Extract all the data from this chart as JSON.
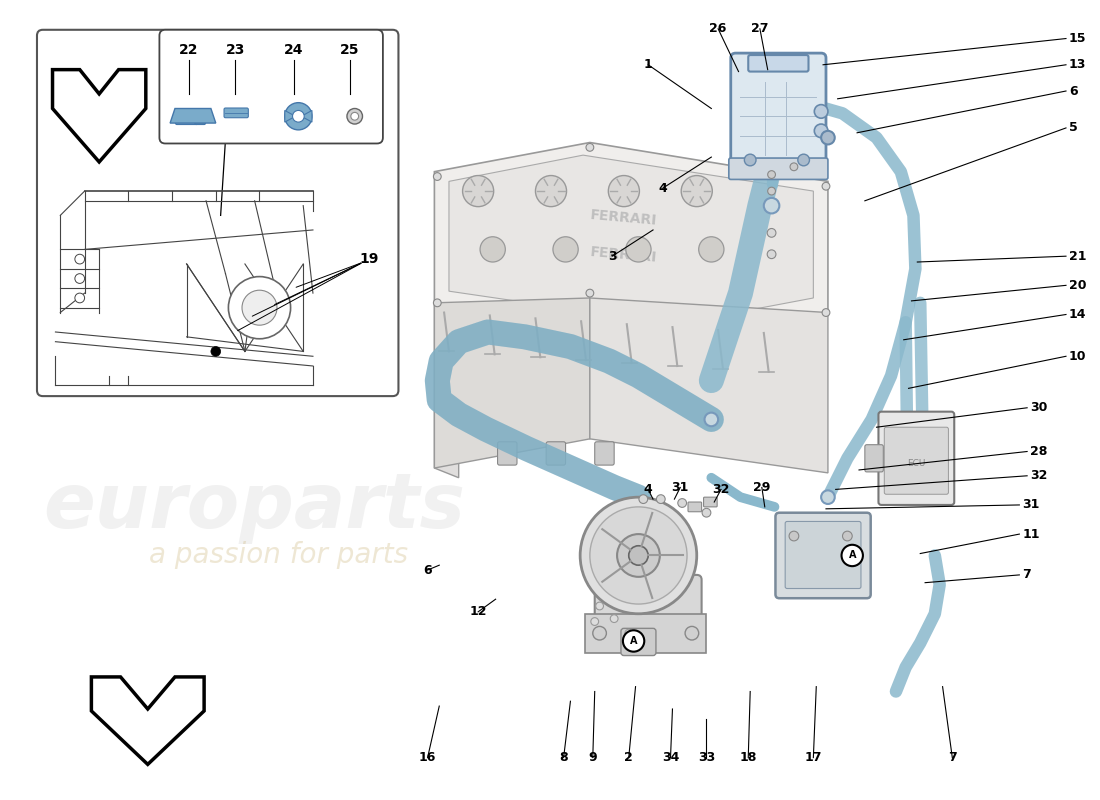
{
  "bg_color": "#ffffff",
  "hose_color": "#8ab8cc",
  "hose_dark": "#5a8fa8",
  "engine_fill": "#f2f0ee",
  "engine_stroke": "#888888",
  "frame_color": "#555555",
  "label_color": "#000000",
  "watermark_text1": "europarts",
  "watermark_text2": "a passion for parts",
  "wm_color1": "#c0c0c0",
  "wm_color2": "#d4c090",
  "arrow_fill": "#ffffff",
  "arrow_stroke": "#111111",
  "inset_stroke": "#555555",
  "bubble_stroke": "#444444",
  "part_labels_bottom": [
    "16",
    "8",
    "9",
    "2",
    "34",
    "33",
    "18",
    "17",
    "7"
  ],
  "part_labels_right": [
    "15",
    "13",
    "6",
    "5",
    "21",
    "20",
    "14",
    "10",
    "30",
    "28",
    "32",
    "31",
    "11",
    "7"
  ],
  "part_labels_top": [
    "26",
    "27",
    "1"
  ],
  "part_labels_other": [
    "4",
    "3",
    "6",
    "12",
    "4",
    "31",
    "32",
    "29",
    "19"
  ],
  "label_fontsize": 9,
  "leader_lw": 0.8
}
